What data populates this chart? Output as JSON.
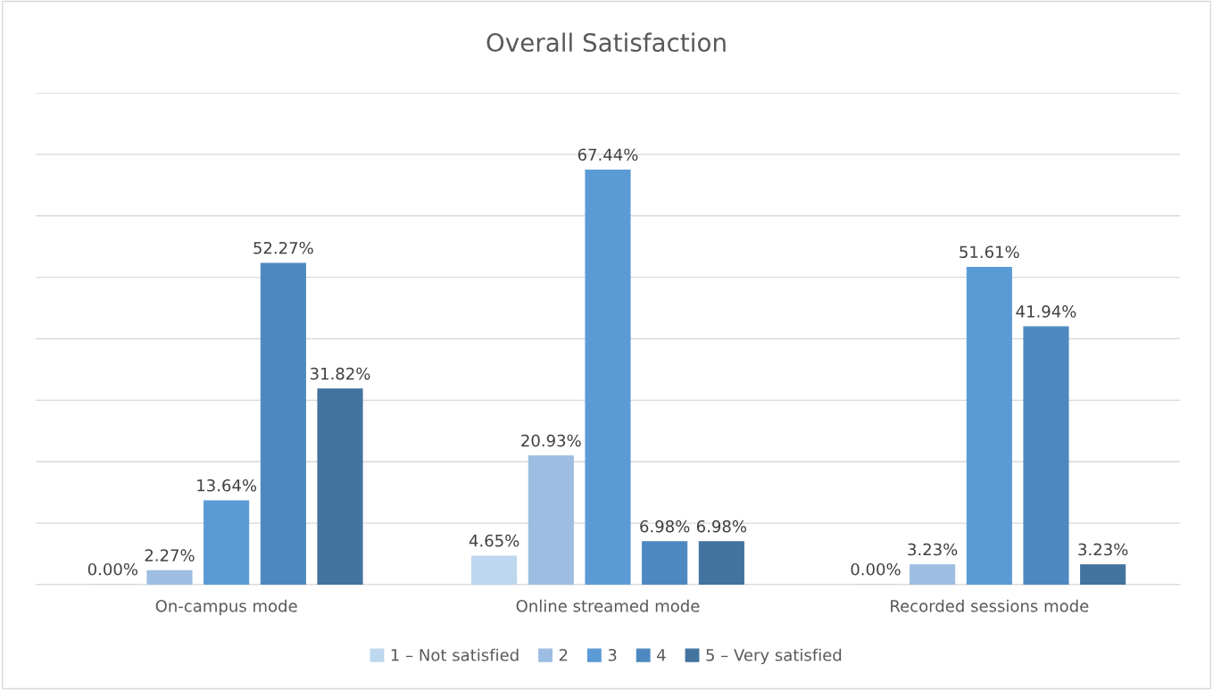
{
  "chart_data": {
    "type": "bar",
    "title": "Overall Satisfaction",
    "categories": [
      "On-campus mode",
      "Online streamed mode",
      "Recorded sessions mode"
    ],
    "series": [
      {
        "name": "1 – Not satisfied",
        "color": "#bdd7ee",
        "values": [
          0.0,
          4.65,
          0.0
        ],
        "value_labels": [
          "0.00%",
          "4.65%",
          "0.00%"
        ]
      },
      {
        "name": "2",
        "color": "#9dbde2",
        "values": [
          2.27,
          20.93,
          3.23
        ],
        "value_labels": [
          "2.27%",
          "20.93%",
          "3.23%"
        ]
      },
      {
        "name": "3",
        "color": "#5b9bd5",
        "values": [
          13.64,
          67.44,
          51.61
        ],
        "value_labels": [
          "13.64%",
          "67.44%",
          "51.61%"
        ]
      },
      {
        "name": "4",
        "color": "#4e88c0",
        "values": [
          52.27,
          6.98,
          41.94
        ],
        "value_labels": [
          "52.27%",
          "6.98%",
          "41.94%"
        ]
      },
      {
        "name": "5 – Very satisfied",
        "color": "#43739f",
        "values": [
          31.82,
          6.98,
          3.23
        ],
        "value_labels": [
          "31.82%",
          "6.98%",
          "3.23%"
        ]
      }
    ],
    "ylim": [
      0,
      80
    ],
    "yticks": [
      {
        "value": 0,
        "label": null
      },
      {
        "value": 10,
        "label": null
      },
      {
        "value": 20,
        "label": null
      },
      {
        "value": 30,
        "label": null
      },
      {
        "value": 40,
        "label": null
      },
      {
        "value": 50,
        "label": null
      },
      {
        "value": 60,
        "label": null
      },
      {
        "value": 70,
        "label": null
      },
      {
        "value": 80,
        "label": null
      }
    ],
    "tick_labels": "x",
    "grid": "y",
    "legend": "bottom"
  }
}
